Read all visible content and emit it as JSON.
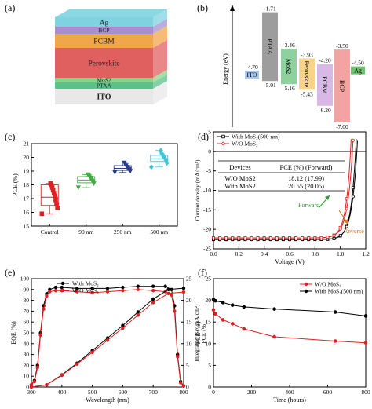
{
  "panel_labels": [
    "(a)",
    "(b)",
    "(c)",
    "(d)",
    "(e)",
    "(f)"
  ],
  "chart_data": [
    {
      "panel": "a",
      "type": "diagram",
      "layers": [
        {
          "name": "Ag",
          "color": "#7fd3e1"
        },
        {
          "name": "BCP",
          "color": "#a58fd1"
        },
        {
          "name": "PCBM",
          "color": "#f0a64a"
        },
        {
          "name": "Perovskite",
          "color": "#e06060"
        },
        {
          "name": "MoS2",
          "color": "#8ad48a"
        },
        {
          "name": "PTAA",
          "color": "#5cc08b"
        },
        {
          "name": "ITO",
          "color": "#e8e8e8"
        }
      ]
    },
    {
      "panel": "b",
      "type": "bar",
      "ylabel": "Energy (eV)",
      "levels": [
        {
          "name": "ITO",
          "top": -4.7,
          "bottom": -4.7,
          "top_label": "-4.70",
          "bottom_label": "",
          "color": "#a9c9ee"
        },
        {
          "name": "PTAA",
          "top": -1.71,
          "bottom": -5.01,
          "top_label": "-1.71",
          "bottom_label": "-5.01",
          "color": "#9d9d9d"
        },
        {
          "name": "MoS2",
          "top": -3.46,
          "bottom": -5.16,
          "top_label": "-3.46",
          "bottom_label": "-5.16",
          "color": "#8fd19e"
        },
        {
          "name": "Perovskite",
          "top": -3.93,
          "bottom": -5.43,
          "top_label": "-3.93",
          "bottom_label": "-5.43",
          "color": "#f7d48a"
        },
        {
          "name": "PCBM",
          "top": -4.2,
          "bottom": -6.2,
          "top_label": "-4.20",
          "bottom_label": "-6.20",
          "color": "#d8b9e6"
        },
        {
          "name": "BCP",
          "top": -3.5,
          "bottom": -7.0,
          "top_label": "-3.50",
          "bottom_label": "-7.00",
          "color": "#f4a3a3"
        },
        {
          "name": "Ag",
          "top": -4.5,
          "bottom": -4.5,
          "top_label": "-4.50",
          "bottom_label": "",
          "color": "#70c070"
        }
      ]
    },
    {
      "panel": "c",
      "type": "scatter",
      "ylabel": "PCE (%)",
      "ylim": [
        15,
        21
      ],
      "yticks": [
        "15",
        "16",
        "17",
        "18",
        "19",
        "20",
        "21"
      ],
      "categories": [
        "Control",
        "90 nm",
        "250 nm",
        "500 nm"
      ],
      "series": [
        {
          "category": "Control",
          "color": "#e02020",
          "marker": "square",
          "box": [
            16.5,
            17.1,
            18.0
          ],
          "whisker": [
            15.9,
            18.1
          ],
          "values": [
            15.9,
            16.3,
            16.6,
            16.9,
            17.2,
            17.4,
            17.6,
            17.8,
            18.0,
            18.1
          ]
        },
        {
          "category": "90 nm",
          "color": "#44aa44",
          "marker": "triangle-down",
          "box": [
            18.15,
            18.35,
            18.6
          ],
          "whisker": [
            17.8,
            18.75
          ],
          "values": [
            17.8,
            18.1,
            18.2,
            18.3,
            18.4,
            18.5,
            18.6,
            18.7,
            18.75
          ]
        },
        {
          "category": "250 nm",
          "color": "#283c8c",
          "marker": "triangle-down",
          "box": [
            19.05,
            19.2,
            19.4
          ],
          "whisker": [
            18.9,
            19.6
          ],
          "values": [
            18.9,
            19.0,
            19.1,
            19.15,
            19.2,
            19.3,
            19.4,
            19.5,
            19.6
          ]
        },
        {
          "category": "500 nm",
          "color": "#44c2d6",
          "marker": "diamond",
          "box": [
            19.7,
            19.9,
            20.15
          ],
          "whisker": [
            19.3,
            20.5
          ],
          "values": [
            19.3,
            19.6,
            19.8,
            19.9,
            20.0,
            20.1,
            20.2,
            20.3,
            20.5
          ]
        }
      ]
    },
    {
      "panel": "d",
      "type": "line",
      "xlabel": "Voltage (V)",
      "ylabel": "Current density (mA/cm²)",
      "xlim": [
        0.0,
        1.2
      ],
      "ylim": [
        -25,
        5
      ],
      "xticks": [
        "0.0",
        "0.2",
        "0.4",
        "0.6",
        "0.8",
        "1.0",
        "1.2"
      ],
      "yticks": [
        "-25",
        "-20",
        "-15",
        "-10",
        "-5",
        "0",
        "5"
      ],
      "legend": [
        "With MoS₂(500 nm)",
        "W/O MoS₂"
      ],
      "table": {
        "header": [
          "Devices",
          "PCE (%) (Forward)"
        ],
        "rows": [
          [
            "W/O MoS2",
            "18.12 (17.99)"
          ],
          [
            "With MoS2",
            "20.55 (20.05)"
          ]
        ]
      },
      "annotations": [
        "Forward",
        "Reverse"
      ],
      "series": [
        {
          "name": "With MoS₂(500 nm)",
          "color": "#000000",
          "jsc": -22.6,
          "voc": 1.12,
          "n": 1.45
        },
        {
          "name": "With MoS₂(500 nm)",
          "color": "#000000",
          "jsc": -22.6,
          "voc": 1.13,
          "n": 1.6
        },
        {
          "name": "W/O MoS₂",
          "color": "#e02020",
          "jsc": -22.2,
          "voc": 1.08,
          "n": 1.45
        },
        {
          "name": "W/O MoS₂",
          "color": "#e02020",
          "jsc": -22.2,
          "voc": 1.095,
          "n": 1.6
        }
      ]
    },
    {
      "panel": "e",
      "type": "line",
      "xlabel": "Wavelength (nm)",
      "ylabel": "EQE (%)",
      "ylabel_right": "Integrated Jsc (mA/cm²)",
      "ylabel_right2": "PCE (%)",
      "xlim": [
        300,
        800
      ],
      "ylim": [
        0,
        100
      ],
      "ylim_right": [
        0,
        25
      ],
      "xticks": [
        "300",
        "400",
        "500",
        "600",
        "700",
        "800"
      ],
      "yticks": [
        "0",
        "10",
        "20",
        "30",
        "40",
        "50",
        "60",
        "70",
        "80",
        "90",
        "100"
      ],
      "yticks_right": [
        "0",
        "5",
        "10",
        "15",
        "20",
        "25"
      ],
      "legend": [
        "With MoS₂",
        "W/O MoS₂"
      ],
      "series": [
        {
          "name": "With MoS₂",
          "color": "#000000",
          "x": [
            300,
            310,
            320,
            330,
            340,
            350,
            360,
            380,
            400,
            450,
            500,
            550,
            600,
            650,
            700,
            740,
            760,
            770,
            780,
            790,
            800
          ],
          "y": [
            2,
            6,
            20,
            50,
            75,
            86,
            90,
            92,
            92,
            91,
            91,
            91,
            92,
            93,
            93,
            93,
            90,
            75,
            30,
            5,
            1
          ]
        },
        {
          "name": "W/O MoS₂",
          "color": "#e02020",
          "x": [
            300,
            310,
            320,
            330,
            340,
            350,
            360,
            380,
            400,
            450,
            500,
            550,
            600,
            650,
            700,
            740,
            760,
            770,
            780,
            790,
            800
          ],
          "y": [
            2,
            5,
            18,
            48,
            72,
            84,
            88,
            89,
            89,
            88,
            87,
            88,
            89,
            90,
            89,
            88,
            85,
            70,
            28,
            4,
            1
          ]
        },
        {
          "name": "With MoS₂ Jsc",
          "color": "#000000",
          "x": [
            300,
            350,
            400,
            450,
            500,
            550,
            600,
            650,
            700,
            750,
            800
          ],
          "y": [
            0,
            0.5,
            2.8,
            5.5,
            8.4,
            11.3,
            14.2,
            17.3,
            20.3,
            22.5,
            22.8
          ]
        },
        {
          "name": "W/O MoS₂ Jsc",
          "color": "#e02020",
          "x": [
            300,
            350,
            400,
            450,
            500,
            550,
            600,
            650,
            700,
            750,
            800
          ],
          "y": [
            0,
            0.5,
            2.7,
            5.3,
            8.0,
            10.8,
            13.6,
            16.6,
            19.5,
            21.6,
            21.9
          ]
        }
      ]
    },
    {
      "panel": "f",
      "type": "line",
      "xlabel": "Time (hours)",
      "ylabel": "PCE (%)",
      "xlim": [
        0,
        800
      ],
      "ylim": [
        0,
        25
      ],
      "xticks": [
        "0",
        "200",
        "400",
        "600",
        "800"
      ],
      "yticks": [
        "0",
        "5",
        "10",
        "15",
        "20",
        "25"
      ],
      "legend": [
        "W/O MoS₂",
        "With MoS₂(500 nm)"
      ],
      "series": [
        {
          "name": "W/O MoS₂",
          "color": "#e02020",
          "x": [
            0,
            10,
            50,
            100,
            160,
            320,
            640,
            800
          ],
          "y": [
            17.8,
            16.9,
            15.5,
            14.6,
            13.4,
            11.6,
            10.6,
            10.2
          ]
        },
        {
          "name": "With MoS₂(500 nm)",
          "color": "#000000",
          "x": [
            0,
            10,
            50,
            100,
            160,
            320,
            640,
            800
          ],
          "y": [
            20.2,
            19.9,
            19.5,
            18.9,
            18.5,
            18.0,
            17.3,
            16.4
          ]
        }
      ]
    }
  ]
}
